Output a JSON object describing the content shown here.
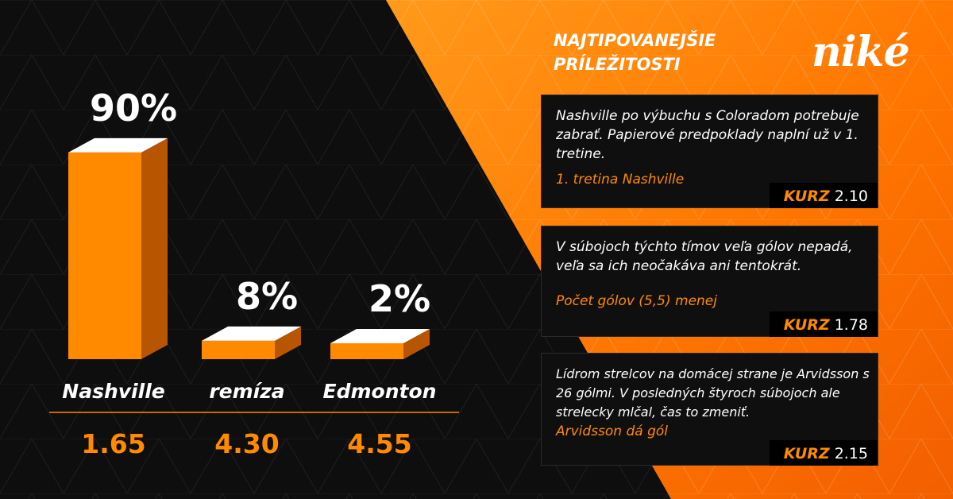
{
  "colors": {
    "accent": "#ff8a00",
    "bar_front": "#ff8a00",
    "bar_side": "#b85500",
    "bar_top": "#ffffff",
    "background_dark": "#0e0e0e",
    "panel_orange": "#ff7a00"
  },
  "chart_data": {
    "type": "bar",
    "categories": [
      "Nashville",
      "remíza",
      "Edmonton"
    ],
    "values": [
      90,
      8,
      2
    ],
    "value_labels": [
      "90%",
      "8%",
      "2%"
    ],
    "odds": [
      "1.65",
      "4.30",
      "4.55"
    ],
    "ylim": [
      0,
      100
    ]
  },
  "panel": {
    "title_line1": "NAJTIPOVANEJŠIE",
    "title_line2": "PRÍLEŽITOSTI",
    "logo": "niké"
  },
  "tips": [
    {
      "text": "Nashville po výbuchu s Coloradom potrebuje zabrať. Papierové predpoklady naplní už v 1. tretine.",
      "bet": "1. tretina Nashville",
      "kurz_label": "KURZ",
      "kurz_value": "2.10"
    },
    {
      "text": "V súbojoch týchto tímov veľa gólov nepadá, veľa sa ich neočakáva ani tentokrát.",
      "bet": "Počet gólov (5,5) menej",
      "kurz_label": "KURZ",
      "kurz_value": "1.78"
    },
    {
      "text": "Lídrom strelcov na domácej strane je Arvidsson s 26 gólmi. V posledných štyroch súbojoch ale strelecky mlčal, čas to zmeniť.",
      "bet": "Arvidsson dá gól",
      "kurz_label": "KURZ",
      "kurz_value": "2.15"
    }
  ]
}
